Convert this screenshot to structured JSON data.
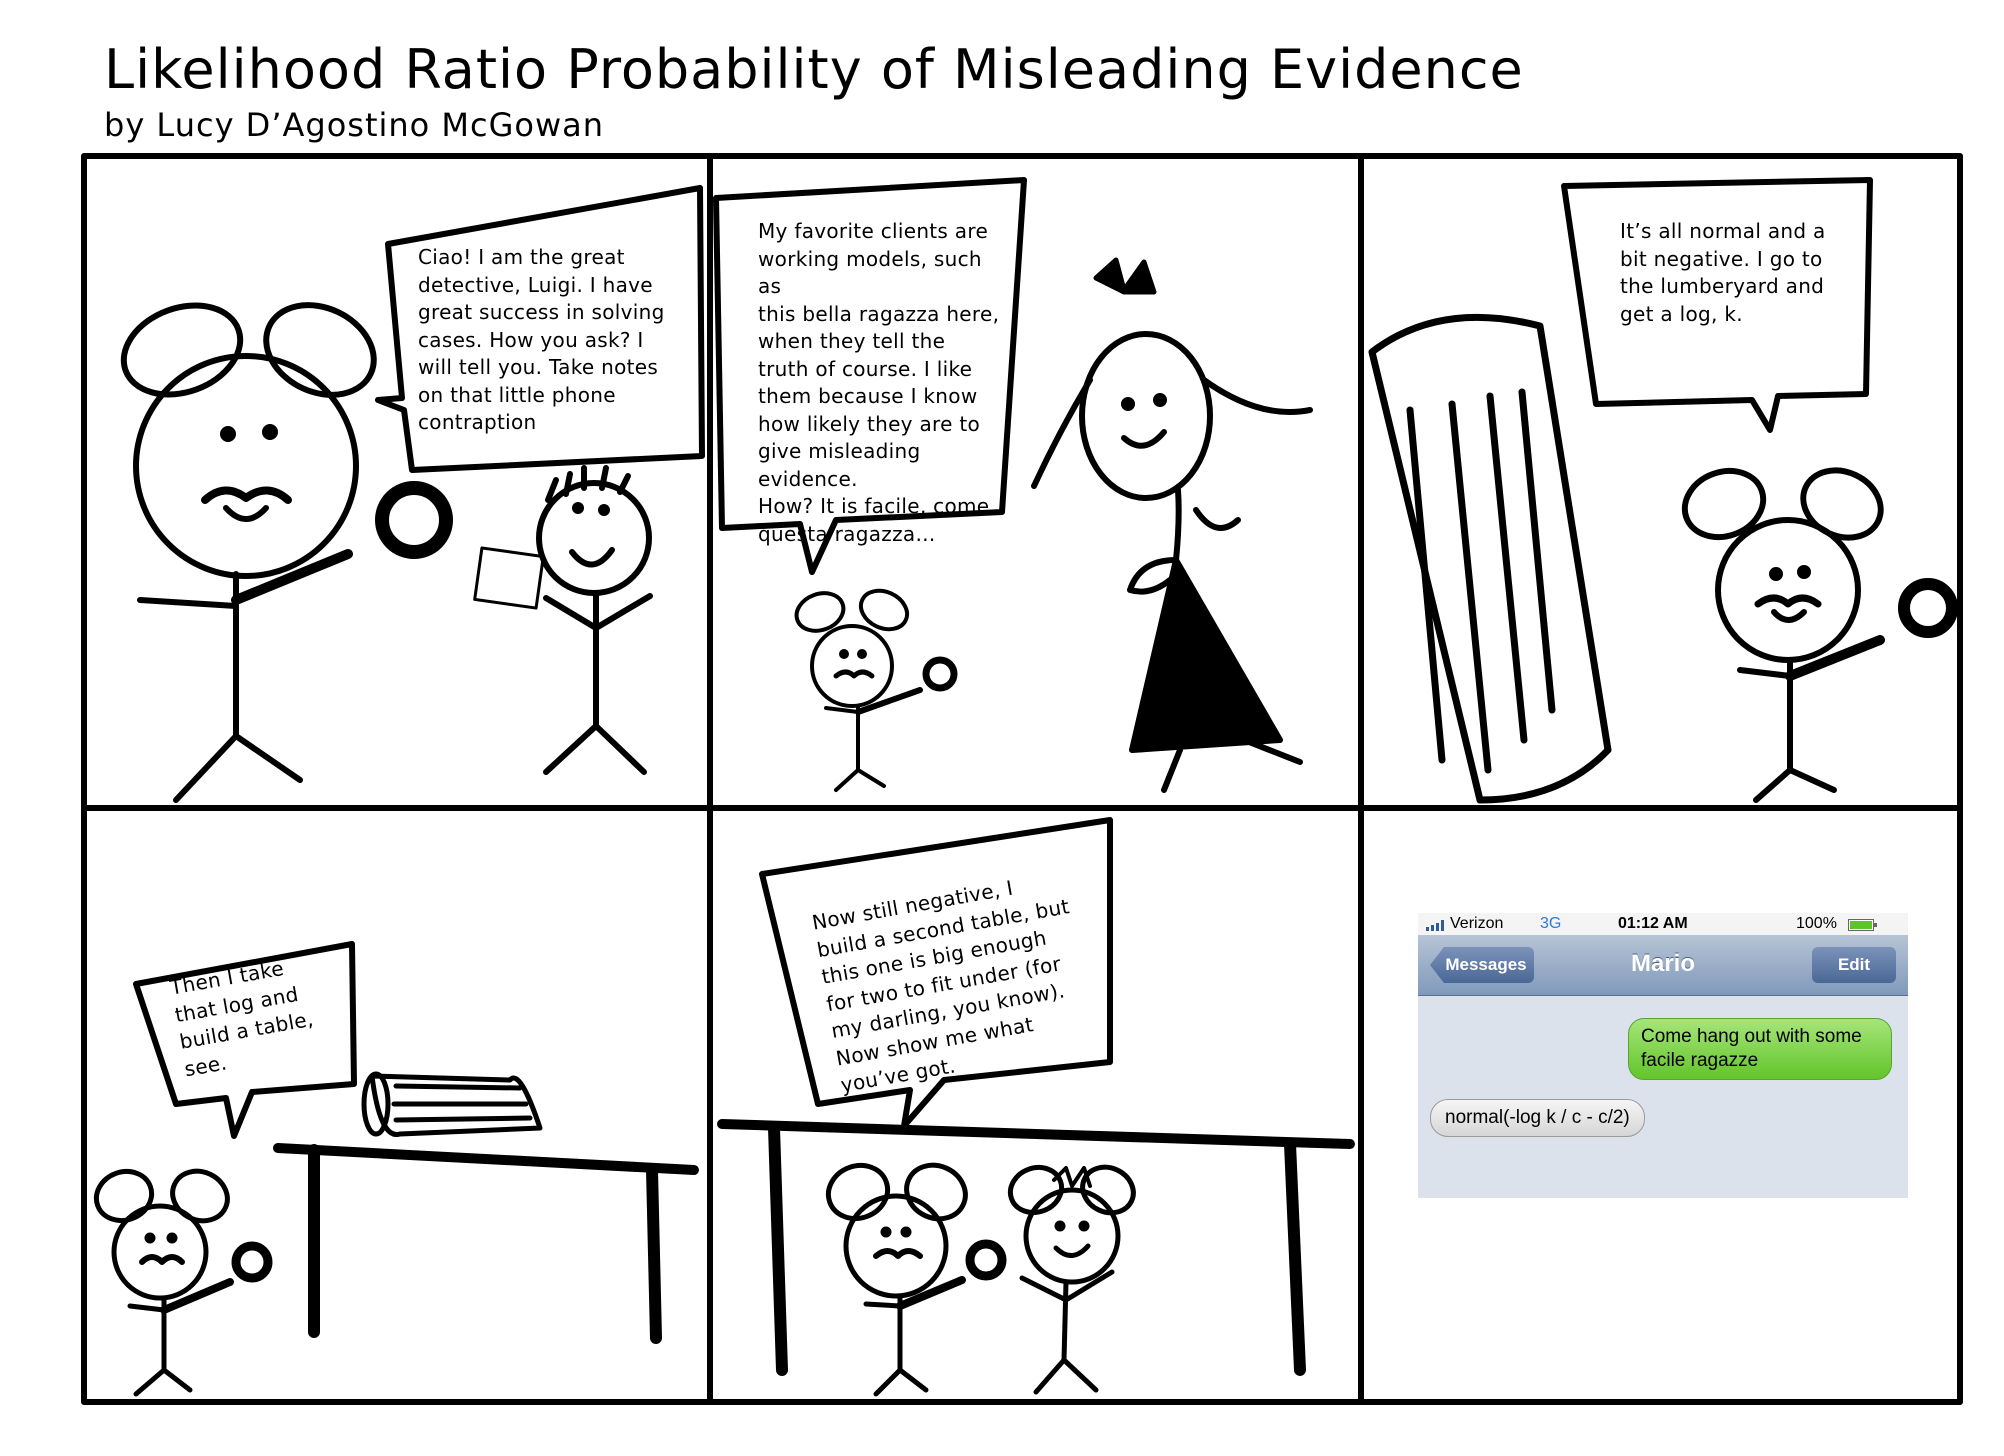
{
  "header": {
    "title": "Likelihood Ratio Probability of Misleading Evidence",
    "byline": "by Lucy D’Agostino McGowan"
  },
  "panels": {
    "p1": {
      "speech": "Ciao! I am the great\ndetective, Luigi. I have\ngreat success in solving\ncases. How you ask? I\nwill tell you. Take notes\non that little phone\ncontraption"
    },
    "p2": {
      "speech": "My favorite clients are\nworking models, such as\nthis bella ragazza here,\nwhen they tell the\ntruth of course. I like\nthem because I know\nhow likely they are to\ngive misleading evidence.\nHow? It is facile, come\nquesta ragazza…"
    },
    "p3": {
      "speech": "It’s all normal and a\nbit negative. I go to\nthe lumberyard and\nget a log, k."
    },
    "p4": {
      "speech": "Then I take\nthat log and\nbuild a table,\nsee."
    },
    "p5": {
      "speech": "Now still negative, I\nbuild a second table, but\nthis one is big enough\nfor two to fit under (for\nmy darling, you know).\nNow show me what\nyou’ve got."
    }
  },
  "phone": {
    "carrier": "Verizon",
    "network": "3G",
    "time": "01:12 AM",
    "battery": "100%",
    "back_label": "Messages",
    "contact": "Mario",
    "edit_label": "Edit",
    "sent_message": "Come hang out with some facile ragazze",
    "received_message": "normal(-log k / c - c/2)"
  },
  "colors": {
    "ink": "#000000",
    "sent_bubble": "#7fd44e",
    "navbar": "#8da2c2",
    "network": "#2e7bd6"
  }
}
